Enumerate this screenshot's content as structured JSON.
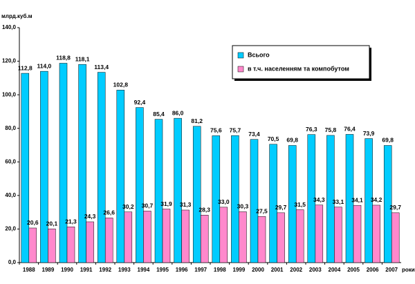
{
  "chart_data": {
    "type": "bar",
    "y_label": "млрд.куб.м",
    "x_label": "роки",
    "categories": [
      "1988",
      "1989",
      "1990",
      "1991",
      "1992",
      "1993",
      "1994",
      "1995",
      "1996",
      "1997",
      "1998",
      "1999",
      "2000",
      "2001",
      "2002",
      "2003",
      "2004",
      "2005",
      "2006",
      "2007"
    ],
    "series": [
      {
        "name": "Всього",
        "color": "#00ccff",
        "values": [
          112.8,
          114.0,
          118.8,
          118.1,
          113.4,
          102.8,
          92.4,
          85.4,
          86.0,
          81.2,
          75.6,
          75.7,
          73.4,
          70.5,
          69.8,
          76.3,
          75.8,
          76.4,
          73.9,
          69.8
        ],
        "value_labels": [
          "112,8",
          "114,0",
          "118,8",
          "118,1",
          "113,4",
          "102,8",
          "92,4",
          "85,4",
          "86,0",
          "81,2",
          "75,6",
          "75,7",
          "73,4",
          "70,5",
          "69,8",
          "76,3",
          "75,8",
          "76,4",
          "73,9",
          "69,8"
        ]
      },
      {
        "name": "в т.ч. населенням та компобутом",
        "color": "#ff88cc",
        "values": [
          20.6,
          20.1,
          21.3,
          24.3,
          26.6,
          30.2,
          30.7,
          31.9,
          31.3,
          28.3,
          33.0,
          30.3,
          27.5,
          29.7,
          31.5,
          34.3,
          33.1,
          34.1,
          34.2,
          29.7
        ],
        "value_labels": [
          "20,6",
          "20,1",
          "21,3",
          "24,3",
          "26,6",
          "30,2",
          "30,7",
          "31,9",
          "31,3",
          "28,3",
          "33,0",
          "30,3",
          "27,5",
          "29,7",
          "31,5",
          "34,3",
          "33,1",
          "34,1",
          "34,2",
          "29,7"
        ]
      }
    ],
    "ylim": [
      0,
      140
    ],
    "yticks": [
      {
        "value": 0,
        "label": "0,0"
      },
      {
        "value": 20,
        "label": "20,0"
      },
      {
        "value": 40,
        "label": "40,0"
      },
      {
        "value": 60,
        "label": "60,0"
      },
      {
        "value": 80,
        "label": "80,0"
      },
      {
        "value": 100,
        "label": "100,0"
      },
      {
        "value": 120,
        "label": "120,0"
      },
      {
        "value": 140,
        "label": "140,0"
      }
    ],
    "grid": false,
    "legend": "upper right"
  }
}
